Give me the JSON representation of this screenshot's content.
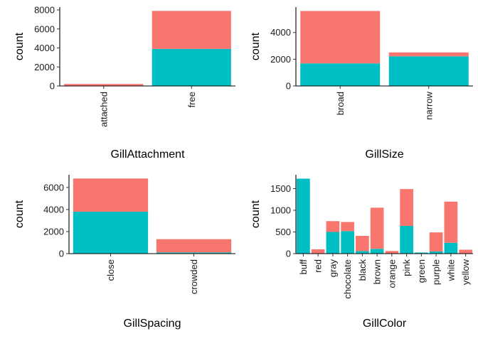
{
  "colors": {
    "top_series": "#f8766d",
    "bottom_series": "#00bfc4"
  },
  "chart_data": [
    {
      "type": "bar",
      "stacked": true,
      "xlabel": "GillAttachment",
      "ylabel": "count",
      "categories": [
        "attached",
        "free"
      ],
      "series": [
        {
          "values": [
            0,
            3900
          ]
        },
        {
          "values": [
            210,
            4000
          ]
        }
      ],
      "yticks": [
        0,
        2000,
        4000,
        6000,
        8000
      ],
      "ylim": [
        0,
        8300
      ]
    },
    {
      "type": "bar",
      "stacked": true,
      "xlabel": "GillSize",
      "ylabel": "count",
      "categories": [
        "broad",
        "narrow"
      ],
      "series": [
        {
          "values": [
            1690,
            2220
          ]
        },
        {
          "values": [
            3920,
            290
          ]
        }
      ],
      "yticks": [
        0,
        2000,
        4000
      ],
      "ylim": [
        0,
        5900
      ]
    },
    {
      "type": "bar",
      "stacked": true,
      "xlabel": "GillSpacing",
      "ylabel": "count",
      "categories": [
        "close",
        "crowded"
      ],
      "series": [
        {
          "values": [
            3800,
            110
          ]
        },
        {
          "values": [
            3010,
            1200
          ]
        }
      ],
      "yticks": [
        0,
        2000,
        4000,
        6000
      ],
      "ylim": [
        0,
        7150
      ]
    },
    {
      "type": "bar",
      "stacked": true,
      "xlabel": "GillColor",
      "ylabel": "count",
      "categories": [
        "buff",
        "red",
        "gray",
        "chocolate",
        "black",
        "brown",
        "orange",
        "pink",
        "green",
        "purple",
        "white",
        "yellow"
      ],
      "series": [
        {
          "values": [
            1730,
            0,
            500,
            520,
            60,
            110,
            0,
            640,
            25,
            50,
            250,
            0
          ]
        },
        {
          "values": [
            0,
            100,
            250,
            210,
            350,
            950,
            60,
            850,
            0,
            440,
            950,
            90
          ]
        }
      ],
      "yticks": [
        0,
        500,
        1000,
        1500
      ],
      "ylim": [
        0,
        1820
      ]
    }
  ]
}
